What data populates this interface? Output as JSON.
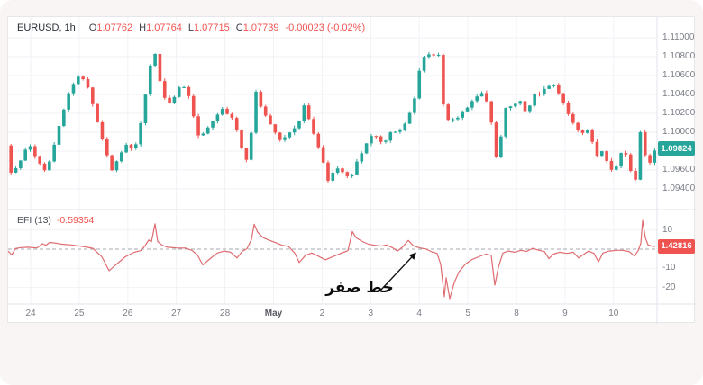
{
  "window": {
    "bg_color": "#f8f5f4",
    "panel_bg": "#ffffff",
    "grid_color": "#f0f2f6",
    "separator_color": "#e0e3eb",
    "axis_text_color": "#7a7e87"
  },
  "header": {
    "symbol": "EURUSD, 1h",
    "o_label": "O",
    "o_value": "1.07762",
    "h_label": "H",
    "h_value": "1.07764",
    "l_label": "L",
    "l_value": "1.07715",
    "c_label": "C",
    "c_value": "1.07739",
    "change": "-0.00023 (-0.02%)"
  },
  "price_pane": {
    "axis_labels": [
      "1.11000",
      "1.10800",
      "1.10600",
      "1.10400",
      "1.10200",
      "1.10000",
      "1.09600",
      "1.09400"
    ],
    "badge": "1.09824"
  },
  "indicator_pane": {
    "title": "EFI (13)",
    "value": "-0.59354",
    "axis_labels": [
      "10",
      "-10",
      "-20"
    ],
    "badge": "1.42816"
  },
  "time_axis": {
    "labels": [
      "24",
      "25",
      "26",
      "27",
      "28",
      "May",
      "2",
      "3",
      "4",
      "5",
      "8",
      "9",
      "10"
    ],
    "month_index": 5
  },
  "annotation": {
    "text": "خط صفر"
  },
  "chart_data": [
    {
      "type": "candlestick",
      "title": "EURUSD, 1h",
      "ohlc": {
        "open": 1.07762,
        "high": 1.07764,
        "low": 1.07715,
        "close": 1.07739,
        "change": -0.00023,
        "change_pct": "-0.02%"
      },
      "last_price": 1.09824,
      "up_color": "#26a69a",
      "down_color": "#ef5350",
      "y_ticks": [
        1.11,
        1.108,
        1.106,
        1.104,
        1.102,
        1.1,
        1.096,
        1.094
      ],
      "y_grid": [
        1.11,
        1.108,
        1.106,
        1.104,
        1.102,
        1.1,
        1.098,
        1.096,
        1.094
      ],
      "ylim": [
        1.0918,
        1.1117
      ],
      "x_tick_labels": [
        "24",
        "25",
        "26",
        "27",
        "28",
        "May",
        "2",
        "3",
        "4",
        "5",
        "8",
        "9",
        "10"
      ],
      "candle_count": 135,
      "price_path": [
        [
          0,
          1.0986
        ],
        [
          4,
          1.095
        ],
        [
          10,
          1.0966
        ],
        [
          16,
          1.0972
        ],
        [
          22,
          1.0989
        ],
        [
          30,
          1.0975
        ],
        [
          40,
          1.0959
        ],
        [
          47,
          1.0971
        ],
        [
          58,
          1.1012
        ],
        [
          69,
          1.1047
        ],
        [
          80,
          1.1061
        ],
        [
          89,
          1.1046
        ],
        [
          102,
          1.1001
        ],
        [
          115,
          1.0959
        ],
        [
          124,
          1.0975
        ],
        [
          130,
          1.0988
        ],
        [
          140,
          1.0979
        ],
        [
          150,
          1.1022
        ],
        [
          155,
          1.1058
        ],
        [
          162,
          1.1089
        ],
        [
          170,
          1.1046
        ],
        [
          177,
          1.1028
        ],
        [
          186,
          1.104
        ],
        [
          192,
          1.1052
        ],
        [
          202,
          1.1036
        ],
        [
          210,
          1.0996
        ],
        [
          217,
          1.0999
        ],
        [
          228,
          1.1012
        ],
        [
          237,
          1.1026
        ],
        [
          250,
          1.1013
        ],
        [
          258,
          1.099
        ],
        [
          262,
          1.0962
        ],
        [
          268,
          1.0985
        ],
        [
          275,
          1.1043
        ],
        [
          282,
          1.1023
        ],
        [
          287,
          1.1016
        ],
        [
          295,
          1.1002
        ],
        [
          302,
          1.0991
        ],
        [
          308,
          1.0996
        ],
        [
          314,
          1.1001
        ],
        [
          322,
          1.1009
        ],
        [
          329,
          1.1031
        ],
        [
          336,
          1.1005
        ],
        [
          342,
          1.0991
        ],
        [
          349,
          1.097
        ],
        [
          355,
          1.0949
        ],
        [
          361,
          1.0958
        ],
        [
          367,
          1.0963
        ],
        [
          373,
          1.0955
        ],
        [
          380,
          1.0951
        ],
        [
          387,
          1.0969
        ],
        [
          394,
          1.0981
        ],
        [
          401,
          1.0996
        ],
        [
          407,
          1.0998
        ],
        [
          413,
          1.0989
        ],
        [
          420,
          1.0992
        ],
        [
          426,
          1.1003
        ],
        [
          432,
          1.0999
        ],
        [
          440,
          1.1009
        ],
        [
          446,
          1.1021
        ],
        [
          450,
          1.103
        ],
        [
          455,
          1.106
        ],
        [
          459,
          1.1078
        ],
        [
          464,
          1.1081
        ],
        [
          469,
          1.1084
        ],
        [
          474,
          1.1079
        ],
        [
          477,
          1.1087
        ],
        [
          481,
          1.1049
        ],
        [
          485,
          1.1008
        ],
        [
          490,
          1.1016
        ],
        [
          497,
          1.1012
        ],
        [
          503,
          1.1021
        ],
        [
          510,
          1.1027
        ],
        [
          517,
          1.1035
        ],
        [
          525,
          1.1043
        ],
        [
          532,
          1.103
        ],
        [
          536,
          1.1012
        ],
        [
          540,
          1.0967
        ],
        [
          546,
          1.099
        ],
        [
          552,
          1.1026
        ],
        [
          558,
          1.1028
        ],
        [
          564,
          1.1031
        ],
        [
          570,
          1.1034
        ],
        [
          575,
          1.1018
        ],
        [
          580,
          1.1032
        ],
        [
          585,
          1.1043
        ],
        [
          591,
          1.104
        ],
        [
          597,
          1.1049
        ],
        [
          605,
          1.105
        ],
        [
          610,
          1.1042
        ],
        [
          614,
          1.1036
        ],
        [
          622,
          1.1018
        ],
        [
          630,
          1.1005
        ],
        [
          636,
          1.0998
        ],
        [
          642,
          1.1004
        ],
        [
          648,
          1.099
        ],
        [
          654,
          1.0974
        ],
        [
          660,
          1.0982
        ],
        [
          666,
          1.0964
        ],
        [
          672,
          1.0957
        ],
        [
          678,
          1.0972
        ],
        [
          682,
          1.0983
        ],
        [
          687,
          1.0974
        ],
        [
          691,
          1.0958
        ],
        [
          695,
          1.0943
        ],
        [
          698,
          1.096
        ],
        [
          701,
          1.1002
        ],
        [
          705,
          1.0988
        ],
        [
          708,
          1.0968
        ],
        [
          711,
          1.0966
        ],
        [
          715,
          1.0972
        ],
        [
          718,
          1.0982
        ]
      ]
    },
    {
      "type": "line",
      "name": "EFI (13)",
      "display_value": -0.59354,
      "last_value": 1.42816,
      "color": "#df6b70",
      "zero_line": {
        "value": 0,
        "style": "dashed",
        "color": "#a7a9b0"
      },
      "y_ticks": [
        10,
        -10,
        -20
      ],
      "ylim": [
        -29,
        21
      ],
      "points": [
        [
          0,
          -1
        ],
        [
          4,
          -3
        ],
        [
          8,
          0.3
        ],
        [
          14,
          0.8
        ],
        [
          22,
          1
        ],
        [
          32,
          0.6
        ],
        [
          38,
          2.8
        ],
        [
          42,
          2
        ],
        [
          46,
          3.5
        ],
        [
          52,
          3.2
        ],
        [
          60,
          2.6
        ],
        [
          70,
          2.2
        ],
        [
          85,
          1.2
        ],
        [
          94,
          0.4
        ],
        [
          99,
          -1.8
        ],
        [
          104,
          -4
        ],
        [
          112,
          -11.2
        ],
        [
          120,
          -8
        ],
        [
          130,
          -4
        ],
        [
          140,
          -1.6
        ],
        [
          147,
          -0.8
        ],
        [
          152,
          1.8
        ],
        [
          156,
          4.8
        ],
        [
          159,
          3.8
        ],
        [
          163,
          13.2
        ],
        [
          166,
          4
        ],
        [
          171,
          2
        ],
        [
          177,
          1
        ],
        [
          187,
          0.6
        ],
        [
          197,
          0.5
        ],
        [
          204,
          -0.6
        ],
        [
          210,
          -3
        ],
        [
          216,
          -8.2
        ],
        [
          222,
          -5.8
        ],
        [
          232,
          -2
        ],
        [
          240,
          -1
        ],
        [
          247,
          -1.6
        ],
        [
          254,
          -4.6
        ],
        [
          260,
          -1
        ],
        [
          265,
          0.2
        ],
        [
          270,
          5
        ],
        [
          273,
          13
        ],
        [
          277,
          8.8
        ],
        [
          283,
          6
        ],
        [
          290,
          4.6
        ],
        [
          297,
          3.4
        ],
        [
          304,
          2
        ],
        [
          311,
          1.4
        ],
        [
          318,
          -2
        ],
        [
          323,
          -7
        ],
        [
          330,
          -3.2
        ],
        [
          337,
          -2
        ],
        [
          344,
          -3.6
        ],
        [
          352,
          -5.6
        ],
        [
          361,
          -3.8
        ],
        [
          370,
          -2
        ],
        [
          377,
          -0.8
        ],
        [
          382,
          9.2
        ],
        [
          386,
          6
        ],
        [
          393,
          4
        ],
        [
          400,
          2.6
        ],
        [
          407,
          2
        ],
        [
          414,
          1.6
        ],
        [
          420,
          2.2
        ],
        [
          427,
          0.6
        ],
        [
          432,
          -1
        ],
        [
          438,
          1.2
        ],
        [
          444,
          4.6
        ],
        [
          450,
          1.6
        ],
        [
          457,
          0.6
        ],
        [
          464,
          0
        ],
        [
          470,
          -1.4
        ],
        [
          476,
          -2.2
        ],
        [
          480,
          -8
        ],
        [
          484,
          -24.8
        ],
        [
          486,
          -15
        ],
        [
          490,
          -25.8
        ],
        [
          495,
          -17.5
        ],
        [
          500,
          -12
        ],
        [
          507,
          -8
        ],
        [
          514,
          -5.6
        ],
        [
          522,
          -4
        ],
        [
          530,
          -2.6
        ],
        [
          536,
          -3.2
        ],
        [
          540,
          -18.8
        ],
        [
          544,
          -9.5
        ],
        [
          549,
          -2
        ],
        [
          555,
          -1
        ],
        [
          562,
          -1.6
        ],
        [
          569,
          -0.6
        ],
        [
          575,
          -1.2
        ],
        [
          582,
          0.4
        ],
        [
          589,
          -0.6
        ],
        [
          595,
          -1.2
        ],
        [
          600,
          -5
        ],
        [
          605,
          -2.6
        ],
        [
          612,
          -1.6
        ],
        [
          620,
          -2.2
        ],
        [
          627,
          -1.6
        ],
        [
          633,
          -4.6
        ],
        [
          639,
          -2.6
        ],
        [
          644,
          -1
        ],
        [
          650,
          -2.2
        ],
        [
          655,
          -6.6
        ],
        [
          660,
          -2
        ],
        [
          667,
          -1
        ],
        [
          675,
          -0.6
        ],
        [
          682,
          -0.6
        ],
        [
          689,
          -1.2
        ],
        [
          695,
          -3.6
        ],
        [
          699,
          -0.8
        ],
        [
          702,
          3
        ],
        [
          704,
          15
        ],
        [
          707,
          6
        ],
        [
          710,
          2.2
        ],
        [
          714,
          1.6
        ],
        [
          718,
          1.43
        ]
      ]
    }
  ]
}
